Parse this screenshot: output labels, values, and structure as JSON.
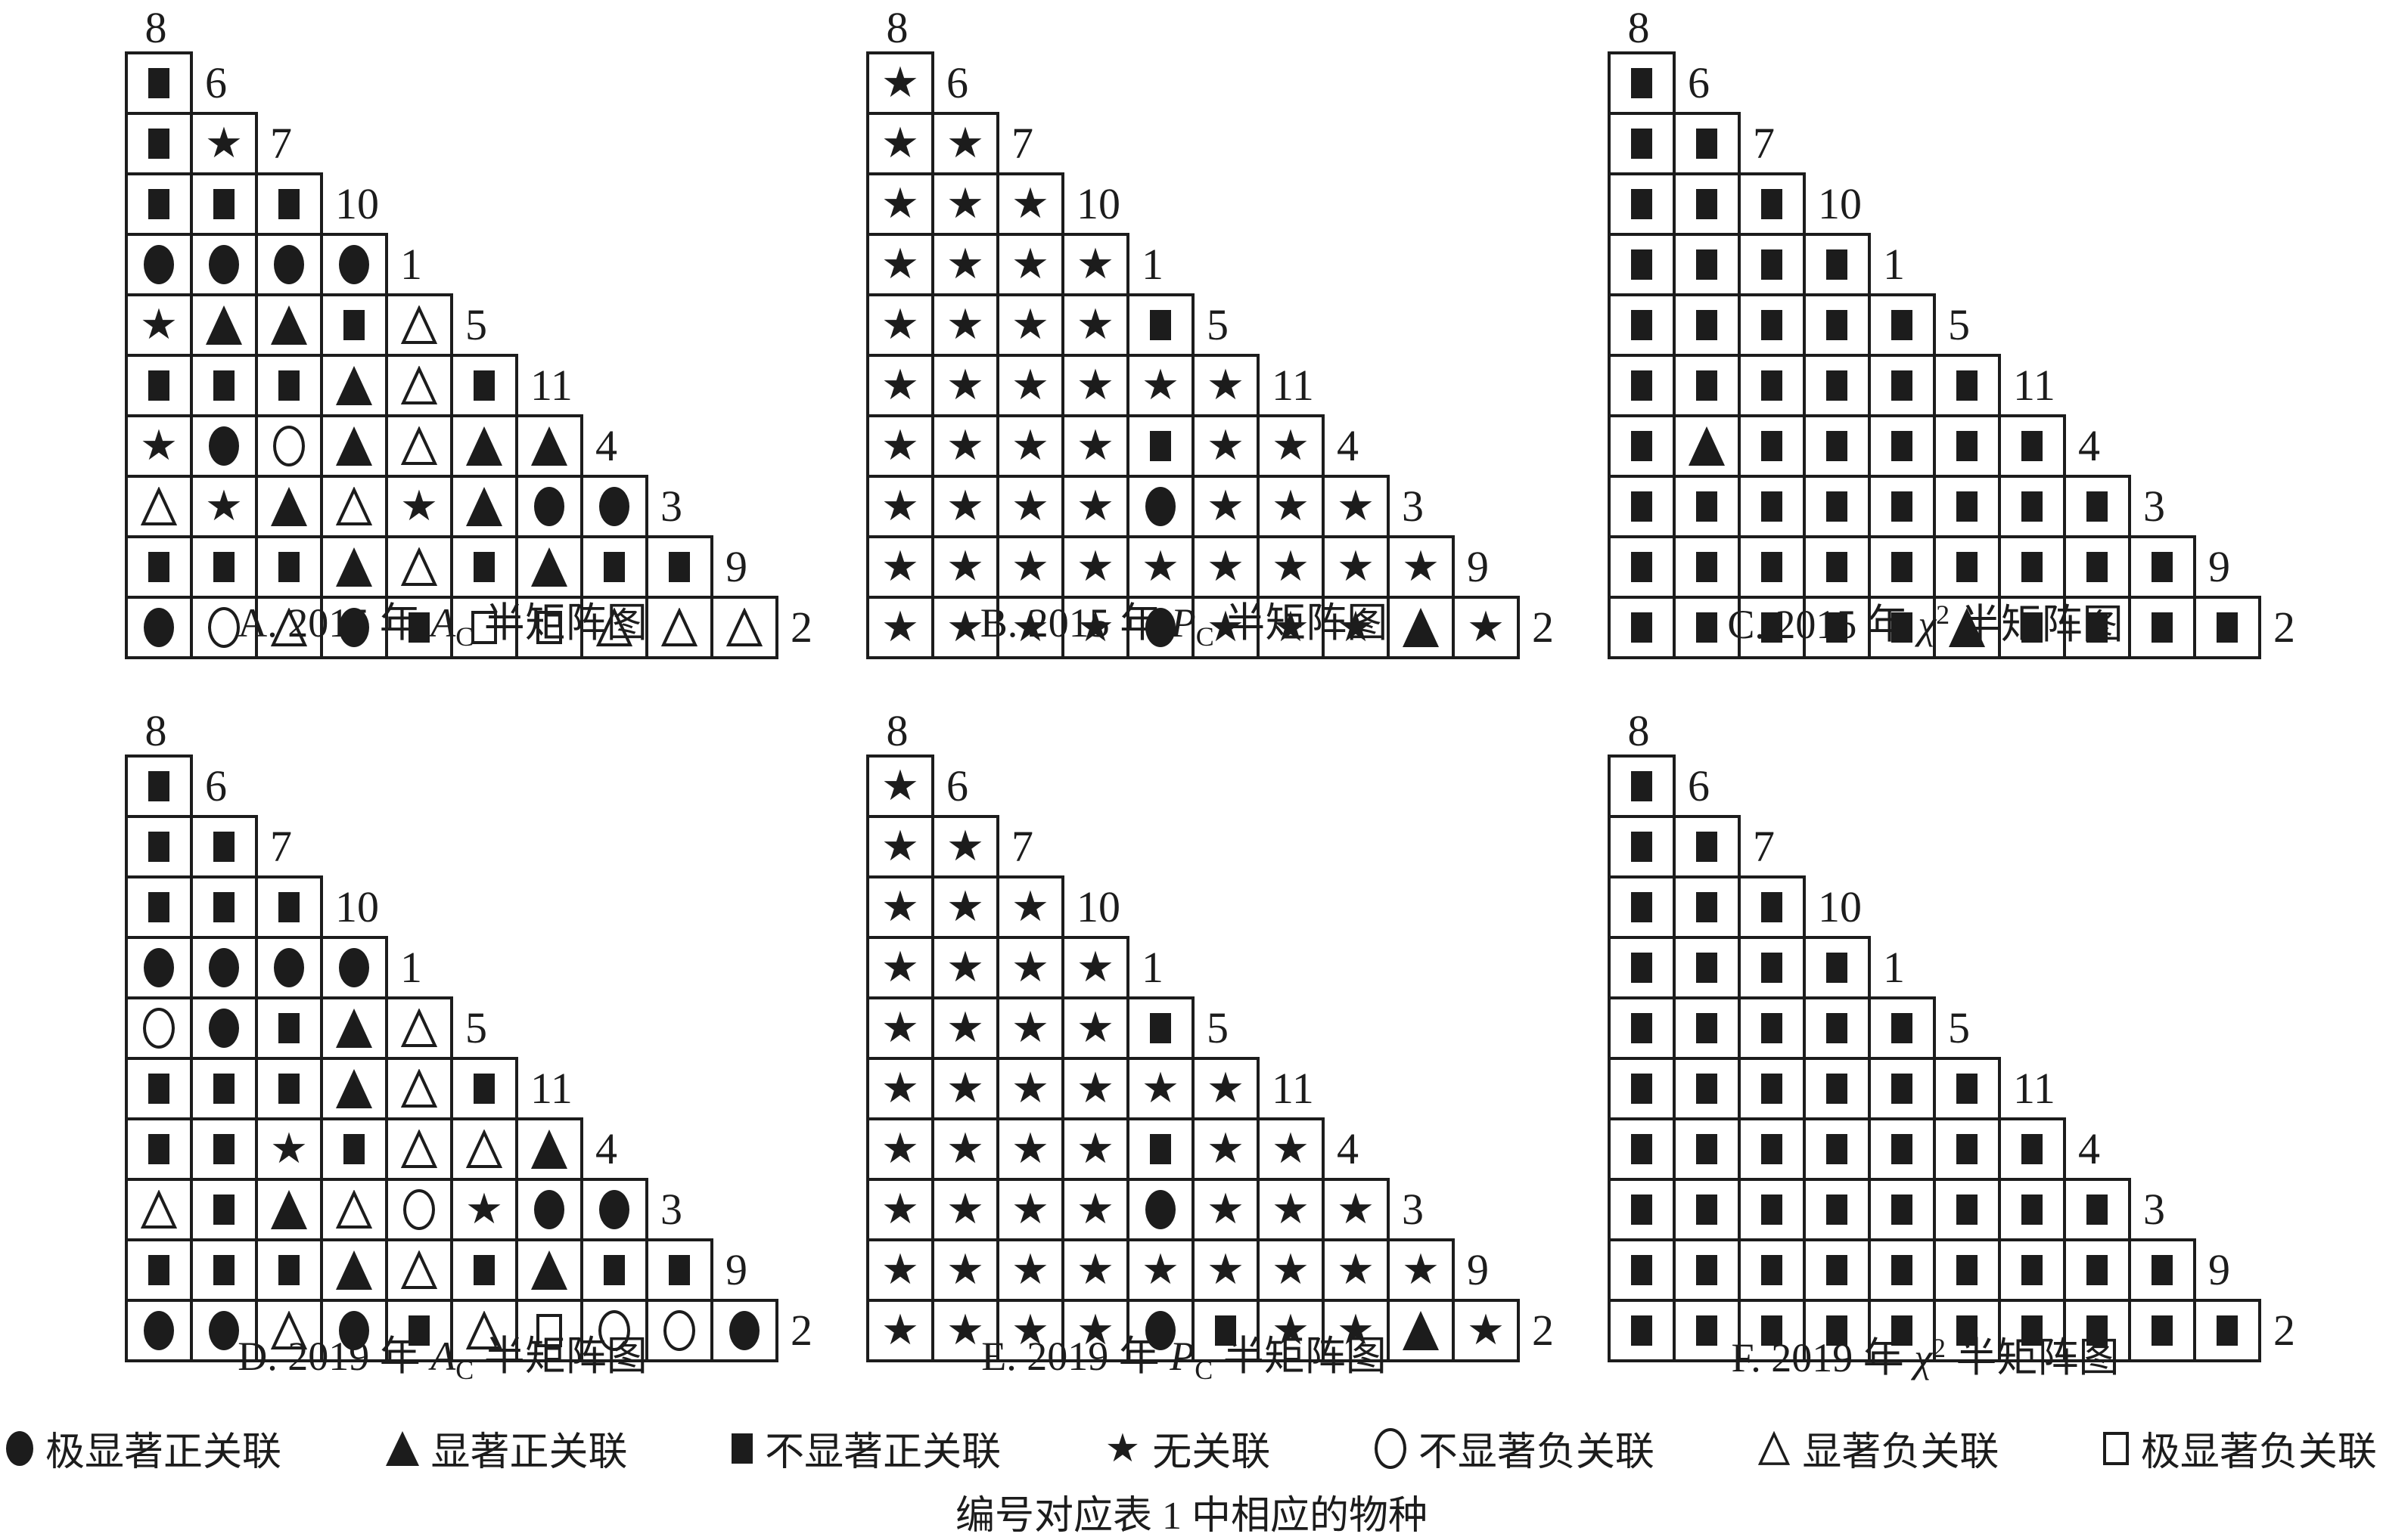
{
  "legend": {
    "items": [
      {
        "symbol": "fc",
        "label": "极显著正关联"
      },
      {
        "symbol": "ft",
        "label": "显著正关联"
      },
      {
        "symbol": "fs",
        "label": "不显著正关联"
      },
      {
        "symbol": "st",
        "label": "无关联"
      },
      {
        "symbol": "oc",
        "label": "不显著负关联"
      },
      {
        "symbol": "ot",
        "label": "显著负关联"
      },
      {
        "symbol": "os",
        "label": "极显著负关联"
      }
    ]
  },
  "footnote": "编号对应表 1 中相应的物种",
  "symbol_meanings": {
    "fc": "filled-circle = 极显著正关联",
    "ft": "filled-triangle = 显著正关联",
    "fs": "filled-square = 不显著正关联",
    "st": "filled-star = 无关联",
    "oc": "open-circle = 不显著负关联",
    "ot": "open-triangle = 显著负关联",
    "os": "open-square = 极显著负关联"
  },
  "chart_data": [
    {
      "type": "heatmap",
      "subtype": "half-matrix",
      "panel": "A",
      "caption": {
        "prefix": "A. 2015 年 ",
        "variable": "A",
        "subscript": "C",
        "superscript": "",
        "suffix": " 半矩阵图"
      },
      "top_label": "8",
      "row_labels": [
        "6",
        "7",
        "10",
        "1",
        "5",
        "11",
        "4",
        "3",
        "9",
        "2"
      ],
      "rows": [
        [
          "fs"
        ],
        [
          "fs",
          "st"
        ],
        [
          "fs",
          "fs",
          "fs"
        ],
        [
          "fc",
          "fc",
          "fc",
          "fc"
        ],
        [
          "st",
          "ft",
          "ft",
          "fs",
          "ot"
        ],
        [
          "fs",
          "fs",
          "fs",
          "ft",
          "ot",
          "fs"
        ],
        [
          "st",
          "fc",
          "oc",
          "ft",
          "ot",
          "ft",
          "ft"
        ],
        [
          "ot",
          "st",
          "ft",
          "ot",
          "st",
          "ft",
          "fc",
          "fc"
        ],
        [
          "fs",
          "fs",
          "fs",
          "ft",
          "ot",
          "fs",
          "ft",
          "fs",
          "fs"
        ],
        [
          "fc",
          "oc",
          "ot",
          "fc",
          "fs",
          "os",
          "os",
          "ot",
          "ot",
          "ot"
        ]
      ]
    },
    {
      "type": "heatmap",
      "subtype": "half-matrix",
      "panel": "B",
      "caption": {
        "prefix": "B. 2015 年 ",
        "variable": "P",
        "subscript": "C",
        "superscript": "",
        "suffix": " 半矩阵图"
      },
      "top_label": "8",
      "row_labels": [
        "6",
        "7",
        "10",
        "1",
        "5",
        "11",
        "4",
        "3",
        "9",
        "2"
      ],
      "rows": [
        [
          "st"
        ],
        [
          "st",
          "st"
        ],
        [
          "st",
          "st",
          "st"
        ],
        [
          "st",
          "st",
          "st",
          "st"
        ],
        [
          "st",
          "st",
          "st",
          "st",
          "fs"
        ],
        [
          "st",
          "st",
          "st",
          "st",
          "st",
          "st"
        ],
        [
          "st",
          "st",
          "st",
          "st",
          "fs",
          "st",
          "st"
        ],
        [
          "st",
          "st",
          "st",
          "st",
          "fc",
          "st",
          "st",
          "st"
        ],
        [
          "st",
          "st",
          "st",
          "st",
          "st",
          "st",
          "st",
          "st",
          "st"
        ],
        [
          "st",
          "st",
          "st",
          "st",
          "fc",
          "st",
          "st",
          "st",
          "ft",
          "st"
        ]
      ]
    },
    {
      "type": "heatmap",
      "subtype": "half-matrix",
      "panel": "C",
      "caption": {
        "prefix": "C. 2015 年 ",
        "variable": "χ",
        "subscript": "",
        "superscript": "2",
        "suffix": " 半矩阵图"
      },
      "top_label": "8",
      "row_labels": [
        "6",
        "7",
        "10",
        "1",
        "5",
        "11",
        "4",
        "3",
        "9",
        "2"
      ],
      "rows": [
        [
          "fs"
        ],
        [
          "fs",
          "fs"
        ],
        [
          "fs",
          "fs",
          "fs"
        ],
        [
          "fs",
          "fs",
          "fs",
          "fs"
        ],
        [
          "fs",
          "fs",
          "fs",
          "fs",
          "fs"
        ],
        [
          "fs",
          "fs",
          "fs",
          "fs",
          "fs",
          "fs"
        ],
        [
          "fs",
          "ft",
          "fs",
          "fs",
          "fs",
          "fs",
          "fs"
        ],
        [
          "fs",
          "fs",
          "fs",
          "fs",
          "fs",
          "fs",
          "fs",
          "fs"
        ],
        [
          "fs",
          "fs",
          "fs",
          "fs",
          "fs",
          "fs",
          "fs",
          "fs",
          "fs"
        ],
        [
          "fs",
          "fs",
          "fs",
          "fs",
          "fs",
          "ft",
          "fs",
          "fs",
          "fs",
          "fs"
        ]
      ]
    },
    {
      "type": "heatmap",
      "subtype": "half-matrix",
      "panel": "D",
      "caption": {
        "prefix": "D. 2019 年 ",
        "variable": "A",
        "subscript": "C",
        "superscript": "",
        "suffix": " 半矩阵图"
      },
      "top_label": "8",
      "row_labels": [
        "6",
        "7",
        "10",
        "1",
        "5",
        "11",
        "4",
        "3",
        "9",
        "2"
      ],
      "rows": [
        [
          "fs"
        ],
        [
          "fs",
          "fs"
        ],
        [
          "fs",
          "fs",
          "fs"
        ],
        [
          "fc",
          "fc",
          "fc",
          "fc"
        ],
        [
          "oc",
          "fc",
          "fs",
          "ft",
          "ot"
        ],
        [
          "fs",
          "fs",
          "fs",
          "ft",
          "ot",
          "fs"
        ],
        [
          "fs",
          "fs",
          "st",
          "fs",
          "ot",
          "ot",
          "ft"
        ],
        [
          "ot",
          "fs",
          "ft",
          "ot",
          "oc",
          "st",
          "fc",
          "fc"
        ],
        [
          "fs",
          "fs",
          "fs",
          "ft",
          "ot",
          "fs",
          "ft",
          "fs",
          "fs"
        ],
        [
          "fc",
          "fc",
          "ot",
          "fc",
          "fs",
          "ot",
          "os",
          "oc",
          "oc",
          "fc"
        ]
      ]
    },
    {
      "type": "heatmap",
      "subtype": "half-matrix",
      "panel": "E",
      "caption": {
        "prefix": "E. 2019 年 ",
        "variable": "P",
        "subscript": "C",
        "superscript": "",
        "suffix": " 半矩阵图"
      },
      "top_label": "8",
      "row_labels": [
        "6",
        "7",
        "10",
        "1",
        "5",
        "11",
        "4",
        "3",
        "9",
        "2"
      ],
      "rows": [
        [
          "st"
        ],
        [
          "st",
          "st"
        ],
        [
          "st",
          "st",
          "st"
        ],
        [
          "st",
          "st",
          "st",
          "st"
        ],
        [
          "st",
          "st",
          "st",
          "st",
          "fs"
        ],
        [
          "st",
          "st",
          "st",
          "st",
          "st",
          "st"
        ],
        [
          "st",
          "st",
          "st",
          "st",
          "fs",
          "st",
          "st"
        ],
        [
          "st",
          "st",
          "st",
          "st",
          "fc",
          "st",
          "st",
          "st"
        ],
        [
          "st",
          "st",
          "st",
          "st",
          "st",
          "st",
          "st",
          "st",
          "st"
        ],
        [
          "st",
          "st",
          "st",
          "st",
          "fc",
          "fs",
          "st",
          "st",
          "ft",
          "st"
        ]
      ]
    },
    {
      "type": "heatmap",
      "subtype": "half-matrix",
      "panel": "F",
      "caption": {
        "prefix": "F. 2019 年 ",
        "variable": "χ",
        "subscript": "",
        "superscript": "2",
        "suffix": " 半矩阵图"
      },
      "top_label": "8",
      "row_labels": [
        "6",
        "7",
        "10",
        "1",
        "5",
        "11",
        "4",
        "3",
        "9",
        "2"
      ],
      "rows": [
        [
          "fs"
        ],
        [
          "fs",
          "fs"
        ],
        [
          "fs",
          "fs",
          "fs"
        ],
        [
          "fs",
          "fs",
          "fs",
          "fs"
        ],
        [
          "fs",
          "fs",
          "fs",
          "fs",
          "fs"
        ],
        [
          "fs",
          "fs",
          "fs",
          "fs",
          "fs",
          "fs"
        ],
        [
          "fs",
          "fs",
          "fs",
          "fs",
          "fs",
          "fs",
          "fs"
        ],
        [
          "fs",
          "fs",
          "fs",
          "fs",
          "fs",
          "fs",
          "fs",
          "fs"
        ],
        [
          "fs",
          "fs",
          "fs",
          "fs",
          "fs",
          "fs",
          "fs",
          "fs",
          "fs"
        ],
        [
          "fs",
          "fs",
          "fs",
          "fs",
          "fs",
          "fs",
          "fs",
          "fs",
          "fs",
          "fs"
        ]
      ]
    }
  ]
}
